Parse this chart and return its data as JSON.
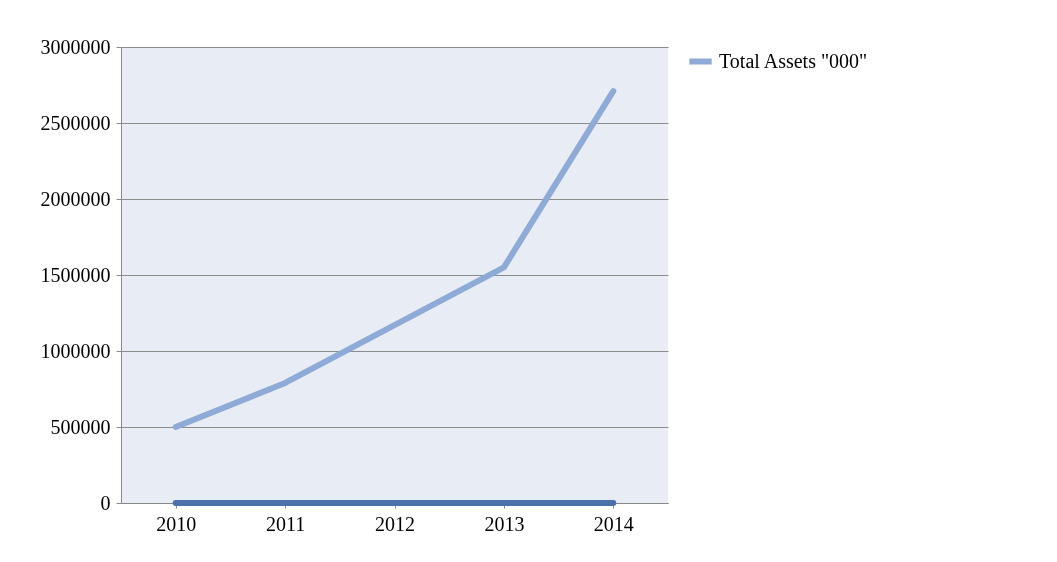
{
  "chart_data": {
    "type": "line",
    "categories": [
      "2010",
      "2011",
      "2012",
      "2013",
      "2014"
    ],
    "series": [
      {
        "name": "Total Assets \"000\"",
        "color": "#8eaad6",
        "values": [
          500000,
          790000,
          1170000,
          1550000,
          2710000
        ]
      },
      {
        "color": "#4a72a8",
        "values": [
          0,
          0,
          0,
          0,
          0
        ]
      }
    ],
    "ylim": [
      0,
      3000000
    ],
    "yticks": [
      0,
      500000,
      1000000,
      1500000,
      2000000,
      2500000,
      3000000
    ],
    "grid": "y",
    "legend": "right",
    "marker": "none",
    "line_style": "solid"
  }
}
